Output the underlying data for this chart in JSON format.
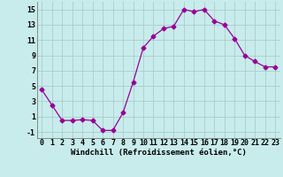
{
  "x": [
    0,
    1,
    2,
    3,
    4,
    5,
    6,
    7,
    8,
    9,
    10,
    11,
    12,
    13,
    14,
    15,
    16,
    17,
    18,
    19,
    20,
    21,
    22,
    23
  ],
  "y": [
    4.5,
    2.5,
    0.5,
    0.5,
    0.6,
    0.5,
    -0.8,
    -0.8,
    1.5,
    5.5,
    10.0,
    11.5,
    12.5,
    12.8,
    15.0,
    14.7,
    15.0,
    13.5,
    13.0,
    11.2,
    9.0,
    8.2,
    7.5,
    7.5
  ],
  "line_color": "#990099",
  "marker": "D",
  "marker_size": 2.5,
  "bg_color": "#c8ecec",
  "grid_color": "#aacccc",
  "xlabel": "Windchill (Refroidissement éolien,°C)",
  "xlabel_fontsize": 6.5,
  "tick_fontsize": 6,
  "ylim": [
    -1.8,
    16
  ],
  "yticks": [
    -1,
    1,
    3,
    5,
    7,
    9,
    11,
    13,
    15
  ],
  "xticks": [
    0,
    1,
    2,
    3,
    4,
    5,
    6,
    7,
    8,
    9,
    10,
    11,
    12,
    13,
    14,
    15,
    16,
    17,
    18,
    19,
    20,
    21,
    22,
    23
  ],
  "xlim": [
    -0.5,
    23.5
  ]
}
